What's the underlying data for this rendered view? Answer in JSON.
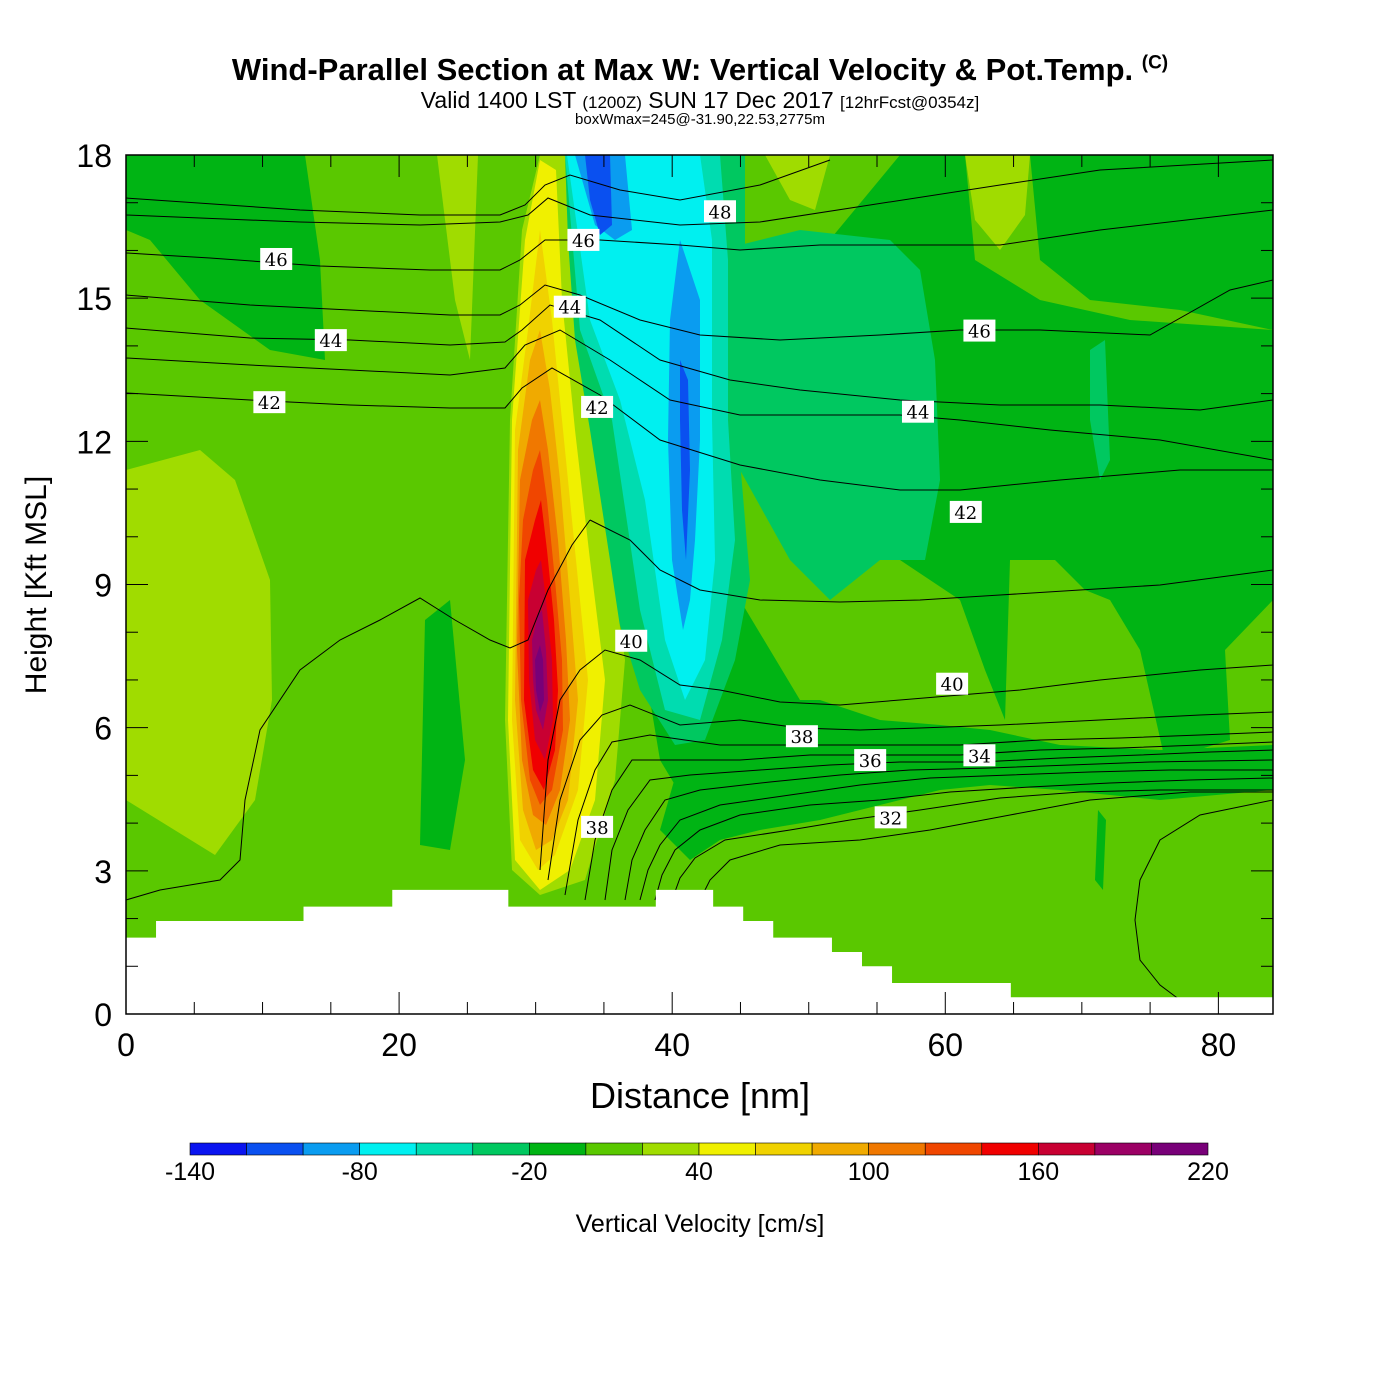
{
  "title": {
    "main": "Wind-Parallel Section at Max W: Vertical Velocity & Pot.Temp.",
    "copyright": "(C)",
    "valid_prefix": "Valid 1400 LST",
    "utc": "(1200Z)",
    "date": "SUN 17 Dec 2017",
    "forecast": "[12hrFcst@0354z]",
    "boxwmax": "boxWmax=245@-31.90,22.53,2775m"
  },
  "chart_data": {
    "type": "heatmap",
    "xlabel": "Distance [nm]",
    "ylabel": "Height [Kft MSL]",
    "xlim": [
      0,
      84
    ],
    "ylim": [
      0,
      18
    ],
    "x_ticks": [
      "0",
      "20",
      "40",
      "60",
      "80"
    ],
    "y_ticks": [
      "0",
      "3",
      "6",
      "9",
      "12",
      "15",
      "18"
    ],
    "x_tick_values": [
      0,
      20,
      40,
      60,
      80
    ],
    "y_tick_values": [
      0,
      3,
      6,
      9,
      12,
      15,
      18
    ],
    "colorbar": {
      "label": "Vertical Velocity [cm/s]",
      "levels": [
        -140,
        -120,
        -100,
        -80,
        -60,
        -40,
        -20,
        0,
        20,
        40,
        60,
        80,
        100,
        120,
        140,
        160,
        180,
        200,
        220
      ],
      "tick_labels": [
        "-140",
        "-80",
        "-20",
        "40",
        "100",
        "160",
        "220"
      ],
      "tick_values": [
        -140,
        -80,
        -20,
        40,
        100,
        160,
        220
      ],
      "colors": [
        "#0a14f0",
        "#0a50f0",
        "#0a9cf0",
        "#00f0f0",
        "#00dcb0",
        "#00c860",
        "#00b414",
        "#5ac800",
        "#a0dc00",
        "#f0f000",
        "#f0d200",
        "#f0aa00",
        "#f07800",
        "#f04600",
        "#f00000",
        "#c80032",
        "#9b0064",
        "#780078"
      ]
    },
    "theta_contours": [
      {
        "label": "32",
        "x": 56,
        "y": 4.1
      },
      {
        "label": "34",
        "x": 62.5,
        "y": 5.4
      },
      {
        "label": "36",
        "x": 54.5,
        "y": 5.3
      },
      {
        "label": "38",
        "x": 49.5,
        "y": 5.8
      },
      {
        "label": "38",
        "x": 34.5,
        "y": 3.9
      },
      {
        "label": "40",
        "x": 37,
        "y": 7.8
      },
      {
        "label": "40",
        "x": 60.5,
        "y": 6.9
      },
      {
        "label": "42",
        "x": 10.5,
        "y": 12.8
      },
      {
        "label": "42",
        "x": 34.5,
        "y": 12.7
      },
      {
        "label": "42",
        "x": 61.5,
        "y": 10.5
      },
      {
        "label": "44",
        "x": 15,
        "y": 14.1
      },
      {
        "label": "44",
        "x": 32.5,
        "y": 14.8
      },
      {
        "label": "44",
        "x": 58,
        "y": 12.6
      },
      {
        "label": "46",
        "x": 11,
        "y": 15.8
      },
      {
        "label": "46",
        "x": 33.5,
        "y": 16.2
      },
      {
        "label": "46",
        "x": 62.5,
        "y": 14.3
      },
      {
        "label": "48",
        "x": 43.5,
        "y": 16.8
      }
    ],
    "terrain_kft": [
      [
        0,
        1.6
      ],
      [
        2.2,
        1.6
      ],
      [
        2.2,
        1.95
      ],
      [
        13,
        1.95
      ],
      [
        13,
        2.25
      ],
      [
        19.5,
        2.25
      ],
      [
        19.5,
        2.6
      ],
      [
        28,
        2.6
      ],
      [
        28,
        2.25
      ],
      [
        38.8,
        2.25
      ],
      [
        38.8,
        2.6
      ],
      [
        43,
        2.6
      ],
      [
        43,
        2.25
      ],
      [
        45.2,
        2.25
      ],
      [
        45.2,
        1.95
      ],
      [
        47.4,
        1.95
      ],
      [
        47.4,
        1.6
      ],
      [
        51.7,
        1.6
      ],
      [
        51.7,
        1.3
      ],
      [
        53.9,
        1.3
      ],
      [
        53.9,
        1.0
      ],
      [
        56.1,
        1.0
      ],
      [
        56.1,
        0.65
      ],
      [
        64.8,
        0.65
      ],
      [
        64.8,
        0.35
      ],
      [
        84,
        0.35
      ]
    ]
  }
}
